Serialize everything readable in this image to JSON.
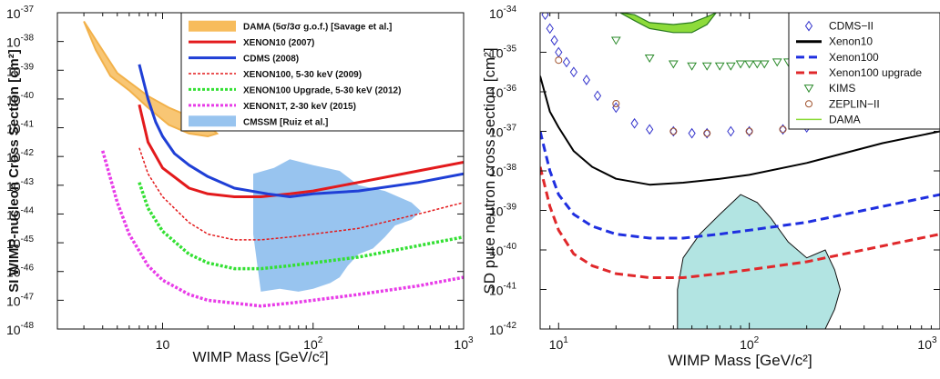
{
  "chart_data": [
    {
      "type": "line",
      "xlabel": "WIMP Mass [GeV/c²]",
      "ylabel": "SI WIMP-nucleon Cross Section [cm²]",
      "xscale": "log",
      "yscale": "log",
      "xlim": [
        2,
        1000
      ],
      "ylim": [
        1e-48,
        1e-37
      ],
      "x_ticks": [
        {
          "v": 10,
          "label": "10"
        },
        {
          "v": 100,
          "label": "10",
          "exp": "2"
        },
        {
          "v": 1000,
          "label": "10",
          "exp": "3"
        }
      ],
      "y_ticks": [
        {
          "v": -37,
          "label": "10",
          "exp": "-37"
        },
        {
          "v": -38,
          "label": "10",
          "exp": "-38"
        },
        {
          "v": -39,
          "label": "10",
          "exp": "-39"
        },
        {
          "v": -40,
          "label": "10",
          "exp": "-40"
        },
        {
          "v": -41,
          "label": "10",
          "exp": "-41"
        },
        {
          "v": -42,
          "label": "10",
          "exp": "-42"
        },
        {
          "v": -43,
          "label": "10",
          "exp": "-43"
        },
        {
          "v": -44,
          "label": "10",
          "exp": "-44"
        },
        {
          "v": -45,
          "label": "10",
          "exp": "-45"
        },
        {
          "v": -46,
          "label": "10",
          "exp": "-46"
        },
        {
          "v": -47,
          "label": "10",
          "exp": "-47"
        },
        {
          "v": -48,
          "label": "10",
          "exp": "-48"
        }
      ],
      "legend_position": "top-right",
      "series": [
        {
          "name": "DAMA (5σ/3σ g.o.f.) [Savage et al.]",
          "kind": "band",
          "color": "#f7bc5c",
          "x": [
            3,
            3.6,
            4.5,
            6,
            8,
            11,
            15,
            20,
            23,
            20,
            15,
            11,
            8,
            5
          ],
          "y": [
            -37.3,
            -38.3,
            -39.2,
            -39.7,
            -40.3,
            -40.9,
            -41.2,
            -41.3,
            -41.2,
            -40.9,
            -40.6,
            -40.3,
            -39.9,
            -39.1
          ]
        },
        {
          "name": "XENON10 (2007)",
          "kind": "line",
          "color": "#e31a1c",
          "dash": "solid",
          "x": [
            7,
            8,
            10,
            15,
            20,
            30,
            45,
            70,
            100,
            200,
            500,
            1000
          ],
          "y": [
            -40.2,
            -41.5,
            -42.4,
            -43.1,
            -43.3,
            -43.4,
            -43.4,
            -43.3,
            -43.2,
            -42.9,
            -42.5,
            -42.2
          ]
        },
        {
          "name": "CDMS (2008)",
          "kind": "line",
          "color": "#1f3fd6",
          "dash": "solid",
          "x": [
            7,
            8,
            9,
            10,
            12,
            15,
            20,
            30,
            50,
            70,
            100,
            200,
            500,
            1000
          ],
          "y": [
            -38.8,
            -40.0,
            -40.8,
            -41.3,
            -41.9,
            -42.3,
            -42.7,
            -43.1,
            -43.3,
            -43.4,
            -43.3,
            -43.2,
            -42.9,
            -42.6
          ]
        },
        {
          "name": "XENON100, 5-30 keV (2009)",
          "kind": "line",
          "color": "#e31a1c",
          "dash": "thin-dotted",
          "x": [
            7,
            8,
            10,
            15,
            20,
            30,
            45,
            70,
            100,
            200,
            500,
            1000
          ],
          "y": [
            -41.7,
            -42.6,
            -43.4,
            -44.3,
            -44.7,
            -44.9,
            -44.9,
            -44.8,
            -44.7,
            -44.5,
            -44.0,
            -43.6
          ]
        },
        {
          "name": "XENON100 Upgrade, 5-30 keV (2012)",
          "kind": "line",
          "color": "#33e033",
          "dash": "dotted",
          "x": [
            7,
            8,
            10,
            15,
            20,
            30,
            45,
            70,
            100,
            200,
            500,
            1000
          ],
          "y": [
            -42.9,
            -43.8,
            -44.6,
            -45.4,
            -45.7,
            -45.9,
            -45.9,
            -45.8,
            -45.7,
            -45.5,
            -45.1,
            -44.8
          ]
        },
        {
          "name": "XENON1T, 2-30 keV (2015)",
          "kind": "line",
          "color": "#e83ce8",
          "dash": "dotted",
          "x": [
            4,
            5,
            6,
            8,
            10,
            15,
            20,
            30,
            45,
            70,
            100,
            200,
            500,
            1000
          ],
          "y": [
            -41.8,
            -43.6,
            -44.7,
            -45.8,
            -46.3,
            -46.8,
            -47.0,
            -47.1,
            -47.2,
            -47.1,
            -47.0,
            -46.8,
            -46.5,
            -46.2
          ]
        },
        {
          "name": "CMSSM [Ruiz et al.]",
          "kind": "band",
          "color": "#98c4ef",
          "x": [
            40,
            55,
            70,
            100,
            150,
            200,
            300,
            450,
            520,
            450,
            350,
            300,
            250,
            200,
            170,
            150,
            130,
            100,
            80,
            60,
            45,
            40
          ],
          "y": [
            -42.6,
            -42.4,
            -42.1,
            -42.3,
            -42.5,
            -43.0,
            -43.2,
            -43.6,
            -43.9,
            -44.2,
            -44.4,
            -44.8,
            -45.2,
            -45.4,
            -45.8,
            -46.2,
            -46.4,
            -46.6,
            -46.7,
            -46.6,
            -46.7,
            -44.7
          ]
        }
      ]
    },
    {
      "type": "scatter",
      "xlabel": "WIMP Mass [GeV/c²]",
      "ylabel": "SD pure neutron cross section [cm²]",
      "xscale": "log",
      "yscale": "log",
      "xlim": [
        8,
        1000
      ],
      "ylim": [
        1e-42,
        1e-34
      ],
      "x_ticks": [
        {
          "v": 10,
          "label": "10",
          "exp": "1"
        },
        {
          "v": 100,
          "label": "10",
          "exp": "2"
        },
        {
          "v": 1000,
          "label": "10",
          "exp": "3"
        }
      ],
      "y_ticks": [
        {
          "v": -34,
          "label": "10",
          "exp": "-34"
        },
        {
          "v": -35,
          "label": "10",
          "exp": "-35"
        },
        {
          "v": -36,
          "label": "10",
          "exp": "-36"
        },
        {
          "v": -37,
          "label": "10",
          "exp": "-37"
        },
        {
          "v": -38,
          "label": "10",
          "exp": "-38"
        },
        {
          "v": -39,
          "label": "10",
          "exp": "-39"
        },
        {
          "v": -40,
          "label": "10",
          "exp": "-40"
        },
        {
          "v": -41,
          "label": "10",
          "exp": "-41"
        },
        {
          "v": -42,
          "label": "10",
          "exp": "-42"
        }
      ],
      "legend_position": "top-right",
      "series": [
        {
          "name": "CDMS−II",
          "kind": "diamond",
          "color": "#3333cc",
          "x": [
            8.5,
            9,
            9.5,
            10,
            11,
            12,
            14,
            16,
            20,
            25,
            30,
            40,
            50,
            60,
            80,
            100,
            150,
            200
          ],
          "y": [
            -34.05,
            -34.4,
            -34.7,
            -35.0,
            -35.25,
            -35.5,
            -35.7,
            -36.1,
            -36.4,
            -36.8,
            -36.95,
            -37.0,
            -37.05,
            -37.05,
            -37.0,
            -37.0,
            -36.95,
            -36.9
          ]
        },
        {
          "name": "Xenon10",
          "kind": "line",
          "color": "#000000",
          "dash": "solid",
          "x": [
            8,
            9,
            10,
            12,
            15,
            20,
            30,
            45,
            70,
            100,
            200,
            500,
            1000
          ],
          "y": [
            -35.6,
            -36.5,
            -36.9,
            -37.5,
            -37.9,
            -38.2,
            -38.35,
            -38.3,
            -38.2,
            -38.1,
            -37.8,
            -37.3,
            -37.0
          ]
        },
        {
          "name": "Xenon100",
          "kind": "line",
          "color": "#1f2fe0",
          "dash": "dashed",
          "x": [
            8,
            9,
            10,
            12,
            15,
            20,
            30,
            45,
            70,
            100,
            200,
            500,
            1000
          ],
          "y": [
            -37.0,
            -38.0,
            -38.6,
            -39.1,
            -39.4,
            -39.6,
            -39.7,
            -39.7,
            -39.6,
            -39.5,
            -39.3,
            -38.9,
            -38.6
          ]
        },
        {
          "name": "Xenon100 upgrade",
          "kind": "line",
          "color": "#e0282b",
          "dash": "dashed",
          "x": [
            8,
            9,
            10,
            12,
            15,
            20,
            30,
            45,
            70,
            100,
            200,
            500,
            1000
          ],
          "y": [
            -37.9,
            -38.9,
            -39.5,
            -40.1,
            -40.4,
            -40.6,
            -40.7,
            -40.7,
            -40.6,
            -40.5,
            -40.3,
            -39.9,
            -39.6
          ]
        },
        {
          "name": "KIMS",
          "kind": "triangle",
          "color": "#2a8a2a",
          "x": [
            20,
            30,
            40,
            50,
            60,
            70,
            80,
            90,
            100,
            110,
            120,
            140,
            160,
            180,
            200
          ],
          "y": [
            -34.7,
            -35.15,
            -35.3,
            -35.35,
            -35.35,
            -35.35,
            -35.35,
            -35.3,
            -35.3,
            -35.3,
            -35.3,
            -35.25,
            -35.25,
            -35.2,
            -35.2
          ]
        },
        {
          "name": "ZEPLIN−II",
          "kind": "circle",
          "color": "#a0522d",
          "x": [
            10,
            20,
            40,
            60,
            100,
            150
          ],
          "y": [
            -35.2,
            -36.3,
            -37.0,
            -37.05,
            -37.0,
            -36.95
          ]
        },
        {
          "name": "DAMA",
          "kind": "band",
          "color": "#8ddb3a",
          "x": [
            21,
            25,
            30,
            40,
            50,
            60,
            67,
            60,
            50,
            40,
            30,
            25
          ],
          "y": [
            -34.0,
            -34.2,
            -34.4,
            -34.5,
            -34.5,
            -34.3,
            -34.0,
            -34.1,
            -34.25,
            -34.3,
            -34.25,
            -34.05
          ]
        },
        {
          "name": "",
          "kind": "region",
          "color": "#b2e4e2",
          "x": [
            42,
            50,
            60,
            75,
            90,
            110,
            130,
            160,
            200,
            250,
            280,
            300,
            280,
            250,
            200,
            160,
            130,
            110,
            90,
            70,
            55,
            45,
            42
          ],
          "y": [
            -42.0,
            -42.0,
            -42.0,
            -42.0,
            -42.0,
            -42.0,
            -42.0,
            -42.0,
            -42.0,
            -42.0,
            -41.5,
            -41.0,
            -40.5,
            -40.0,
            -40.2,
            -39.8,
            -39.2,
            -38.8,
            -38.6,
            -39.1,
            -39.6,
            -40.2,
            -41.0
          ]
        }
      ]
    }
  ]
}
